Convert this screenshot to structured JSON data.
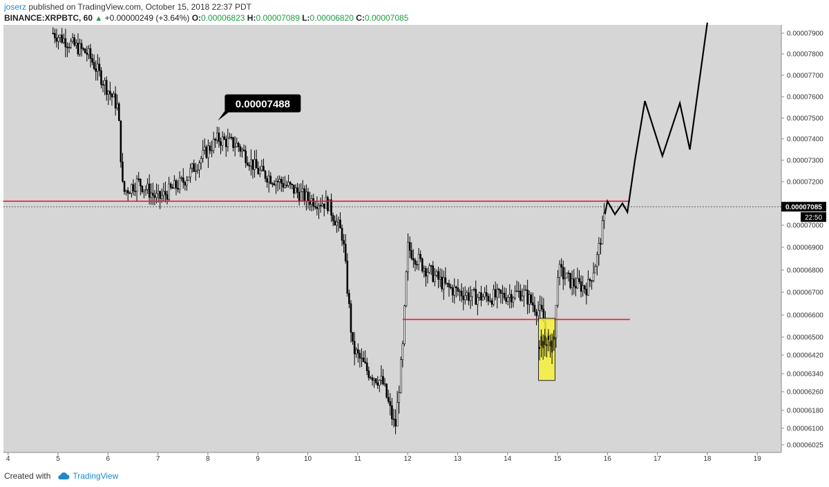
{
  "header": {
    "author": "joserz",
    "published": "published on TradingView.com, October 15, 2018 22:37 PDT",
    "symbol": "BINANCE:XRPBTC, 60",
    "change": "+0.00000249 (+3.64%)",
    "o_label": "O:",
    "o": "0.00006823",
    "h_label": "H:",
    "h": "0.00007089",
    "l_label": "L:",
    "l": "0.00006820",
    "c_label": "C:",
    "c": "0.00007085"
  },
  "footer": {
    "created_with": "Created with",
    "brand": "TradingView"
  },
  "colors": {
    "bg": "#d6d6d6",
    "candle": "#000000",
    "level": "#e8182a",
    "highlight": "#f7f23a",
    "axis_text": "#333333"
  },
  "chart_data": {
    "type": "candlestick",
    "x_ticks": [
      "4",
      "5",
      "6",
      "7",
      "8",
      "9",
      "10",
      "11",
      "12",
      "13",
      "14",
      "15",
      "16",
      "17",
      "18",
      "19"
    ],
    "y_ticks": [
      "0.00007900",
      "0.00007800",
      "0.00007700",
      "0.00007600",
      "0.00007500",
      "0.00007400",
      "0.00007300",
      "0.00007200",
      "0.00007000",
      "0.00006900",
      "0.00006800",
      "0.00006700",
      "0.00006600",
      "0.00006500",
      "0.00006420",
      "0.00006340",
      "0.00006260",
      "0.00006180",
      "0.00006100",
      "0.00006025"
    ],
    "ylim": [
      6.025e-05,
      7.95e-05
    ],
    "last_price": "0.00007085",
    "countdown": "22:50",
    "annotation": "0.00007488",
    "approx_path": [
      [
        4.9,
        7.9
      ],
      [
        5.6,
        7.8
      ],
      [
        6.2,
        7.55
      ],
      [
        6.3,
        7.15
      ],
      [
        6.6,
        7.2
      ],
      [
        7.0,
        7.12
      ],
      [
        7.5,
        7.2
      ],
      [
        8.0,
        7.35
      ],
      [
        8.2,
        7.4
      ],
      [
        8.6,
        7.37
      ],
      [
        9.0,
        7.25
      ],
      [
        9.6,
        7.18
      ],
      [
        10.0,
        7.12
      ],
      [
        10.4,
        7.1
      ],
      [
        10.7,
        6.95
      ],
      [
        10.9,
        6.45
      ],
      [
        11.2,
        6.35
      ],
      [
        11.5,
        6.3
      ],
      [
        11.75,
        6.1
      ],
      [
        11.9,
        6.45
      ],
      [
        12.0,
        6.9
      ],
      [
        12.3,
        6.82
      ],
      [
        12.8,
        6.72
      ],
      [
        13.3,
        6.68
      ],
      [
        13.8,
        6.68
      ],
      [
        14.3,
        6.7
      ],
      [
        14.7,
        6.6
      ],
      [
        14.8,
        6.46
      ],
      [
        14.95,
        6.5
      ],
      [
        15.0,
        6.8
      ],
      [
        15.3,
        6.74
      ],
      [
        15.6,
        6.72
      ],
      [
        15.8,
        6.86
      ],
      [
        15.95,
        7.05
      ]
    ],
    "levels": [
      {
        "price": 7.11,
        "x_from": 3.9,
        "x_to": 16.45
      },
      {
        "price": 6.58,
        "x_from": 11.9,
        "x_to": 16.45
      }
    ],
    "projection": [
      [
        15.95,
        7.05
      ],
      [
        16.0,
        7.11
      ],
      [
        16.15,
        7.05
      ],
      [
        16.3,
        7.1
      ],
      [
        16.4,
        7.06
      ],
      [
        16.55,
        7.3
      ],
      [
        16.75,
        7.58
      ],
      [
        17.1,
        7.32
      ],
      [
        17.45,
        7.57
      ],
      [
        17.65,
        7.35
      ],
      [
        18.0,
        7.95
      ]
    ],
    "highlight_box": {
      "x_from": 14.62,
      "x_to": 14.95,
      "top": 6.585,
      "bottom": 6.31
    }
  }
}
